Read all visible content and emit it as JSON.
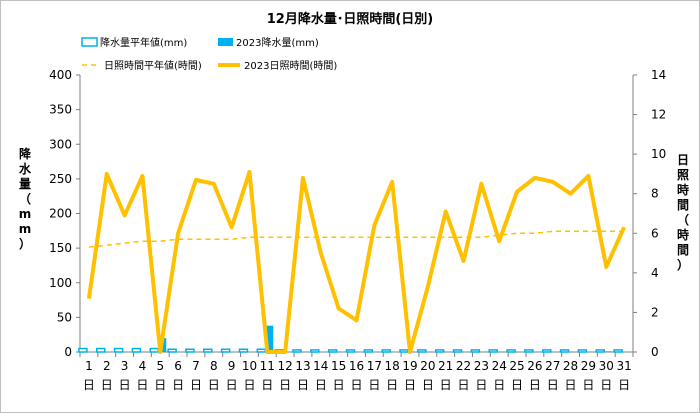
{
  "chart_data": {
    "type": "bar+line",
    "title": "12月降水量･日照時間(日別)",
    "categories": [
      "1",
      "2",
      "3",
      "4",
      "5",
      "6",
      "7",
      "8",
      "9",
      "10",
      "11",
      "12",
      "13",
      "14",
      "15",
      "16",
      "17",
      "18",
      "19",
      "20",
      "21",
      "22",
      "23",
      "24",
      "25",
      "26",
      "27",
      "28",
      "29",
      "30",
      "31"
    ],
    "category_suffix": "日",
    "ylabel_left": "降水量（mm）",
    "ylabel_right": "日照時間（時間）",
    "ylim_left": [
      0,
      400
    ],
    "yticks_left": [
      0,
      50,
      100,
      150,
      200,
      250,
      300,
      350,
      400
    ],
    "ylim_right": [
      0,
      14
    ],
    "yticks_right": [
      0,
      2,
      4,
      6,
      8,
      10,
      12,
      14
    ],
    "grid": false,
    "legend_position": "top",
    "series": [
      {
        "name": "降水量平年値(mm)",
        "kind": "bar",
        "axis": "left",
        "style": "outline",
        "color": "#00b0f0",
        "values": [
          5,
          5,
          5,
          5,
          5,
          4,
          4,
          4,
          4,
          4,
          4,
          3,
          3,
          3,
          3,
          3,
          3,
          3,
          3,
          3,
          3,
          3,
          3,
          3,
          3,
          3,
          3,
          3,
          3,
          3,
          3
        ]
      },
      {
        "name": "2023降水量(mm)",
        "kind": "bar",
        "axis": "left",
        "style": "solid",
        "color": "#00b0f0",
        "values": [
          0,
          0,
          0,
          0,
          20,
          0,
          0,
          0,
          0,
          0,
          38,
          0,
          0,
          0,
          0,
          0,
          0,
          0,
          0,
          0,
          0,
          0,
          0,
          0,
          0,
          0,
          0,
          0,
          0,
          1,
          0
        ]
      },
      {
        "name": "日照時間平年値(時間)",
        "kind": "line",
        "axis": "right",
        "style": "dashed",
        "color": "#ffc000",
        "values": [
          5.3,
          5.4,
          5.5,
          5.6,
          5.6,
          5.7,
          5.7,
          5.7,
          5.7,
          5.8,
          5.8,
          5.8,
          5.8,
          5.8,
          5.8,
          5.8,
          5.8,
          5.8,
          5.8,
          5.8,
          5.8,
          5.8,
          5.8,
          5.9,
          6.0,
          6.0,
          6.1,
          6.1,
          6.1,
          6.1,
          6.1
        ]
      },
      {
        "name": "2023日照時間(時間)",
        "kind": "line",
        "axis": "right",
        "style": "solid",
        "color": "#ffc000",
        "values": [
          2.7,
          9.0,
          6.9,
          8.9,
          0.0,
          6.0,
          8.7,
          8.5,
          6.3,
          9.1,
          0.0,
          0.0,
          8.8,
          5.0,
          2.2,
          1.6,
          6.4,
          8.6,
          0.0,
          3.3,
          7.1,
          4.6,
          8.5,
          5.6,
          8.1,
          8.8,
          8.6,
          8.0,
          8.9,
          4.3,
          6.3
        ]
      }
    ]
  }
}
